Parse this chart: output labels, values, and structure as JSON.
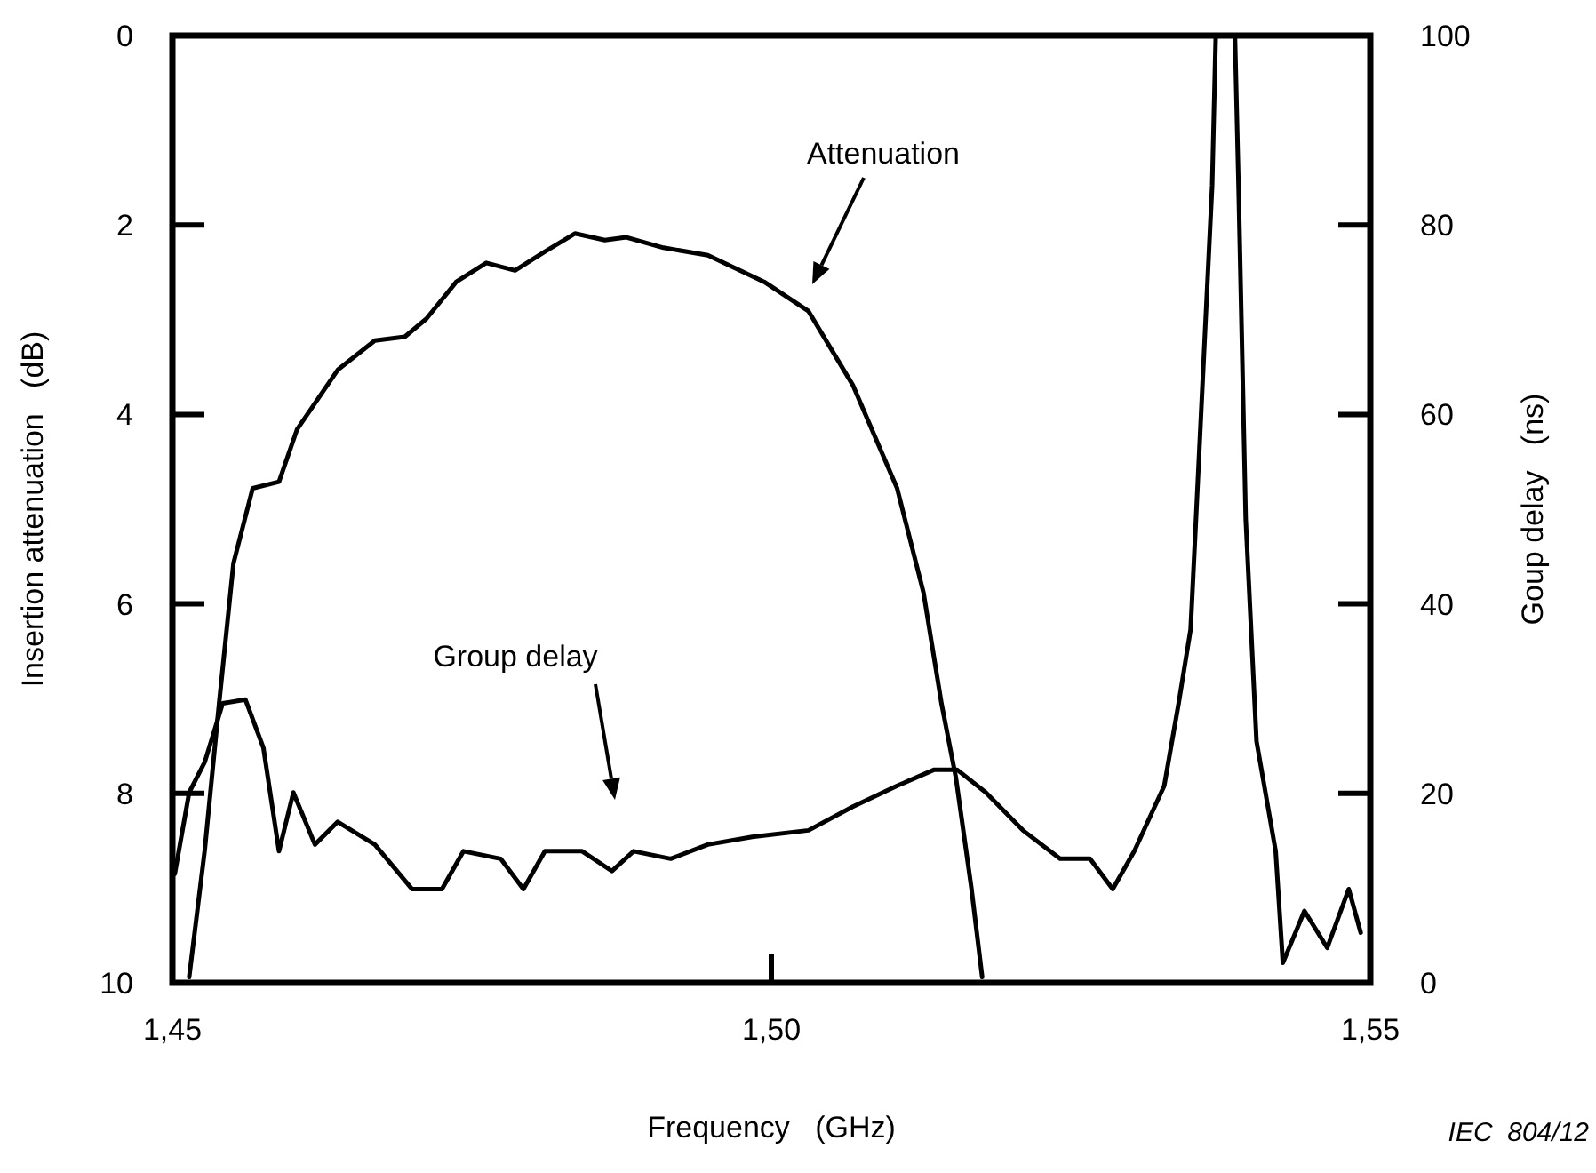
{
  "chart_data": {
    "type": "line",
    "xlabel": "Frequency   (GHz)",
    "ylabel": "Insertion attenuation   (dB)",
    "y2label": "Goup delay   (ns)",
    "xlim": [
      1.45,
      1.55
    ],
    "xticks": [
      {
        "value": 1.45,
        "label": "1,45"
      },
      {
        "value": 1.5,
        "label": "1,50"
      },
      {
        "value": 1.55,
        "label": "1,55"
      }
    ],
    "ylim": [
      10,
      0
    ],
    "yticks": [
      0,
      2,
      4,
      6,
      8,
      10
    ],
    "y2lim": [
      0,
      100
    ],
    "y2ticks": [
      0,
      20,
      40,
      60,
      80,
      100
    ],
    "grid": false,
    "line_style": "solid",
    "series": [
      {
        "color": "#000000",
        "x": [
          1.4514,
          1.4527,
          1.4539,
          1.4551,
          1.4567,
          1.4589,
          1.4604,
          1.4638,
          1.4669,
          1.4694,
          1.4712,
          1.4737,
          1.4762,
          1.4786,
          1.4811,
          1.4836,
          1.4861,
          1.4879,
          1.491,
          1.4947,
          1.4994,
          1.5031,
          1.5068,
          1.5105,
          1.5127,
          1.5142,
          1.5154,
          1.5167,
          1.5176
        ],
        "values": [
          9.94,
          8.6,
          7.05,
          5.57,
          4.78,
          4.71,
          4.16,
          3.53,
          3.22,
          3.18,
          2.99,
          2.6,
          2.4,
          2.48,
          2.28,
          2.09,
          2.16,
          2.13,
          2.24,
          2.32,
          2.6,
          2.91,
          3.69,
          4.78,
          5.88,
          7.05,
          7.83,
          9.0,
          9.94
        ]
      },
      {
        "color": "#000000",
        "axis": "y2",
        "x": [
          1.4502,
          1.4514,
          1.4527,
          1.4542,
          1.4561,
          1.4576,
          1.4589,
          1.4601,
          1.4619,
          1.4638,
          1.4669,
          1.47,
          1.4725,
          1.4743,
          1.4774,
          1.4793,
          1.4811,
          1.4842,
          1.4867,
          1.4885,
          1.4916,
          1.4947,
          1.4984,
          1.5031,
          1.5068,
          1.5105,
          1.5136,
          1.5155,
          1.5179,
          1.521,
          1.5241,
          1.5266,
          1.5285,
          1.5303,
          1.5328,
          1.534,
          1.535,
          1.5356,
          1.5362,
          1.5368,
          1.5371,
          1.5387,
          1.539,
          1.5396,
          1.5405,
          1.5421,
          1.5427,
          1.5445,
          1.5464,
          1.5482,
          1.5492
        ],
        "values": [
          11.5,
          20.1,
          23.3,
          29.5,
          29.9,
          24.8,
          13.9,
          20.1,
          14.6,
          17.0,
          14.6,
          9.9,
          9.9,
          13.9,
          13.1,
          9.9,
          13.9,
          13.9,
          11.8,
          13.9,
          13.1,
          14.6,
          15.4,
          16.1,
          18.6,
          20.8,
          22.5,
          22.5,
          20.1,
          16.1,
          13.1,
          13.1,
          9.9,
          13.9,
          20.8,
          29.5,
          37.3,
          52.9,
          68.6,
          84.2,
          100,
          100,
          84.2,
          49,
          25.5,
          13.9,
          2.1,
          7.6,
          3.7,
          9.9,
          5.3
        ]
      }
    ],
    "annotations": [
      "Attenuation",
      "Group delay",
      "IEC  804/12"
    ]
  }
}
